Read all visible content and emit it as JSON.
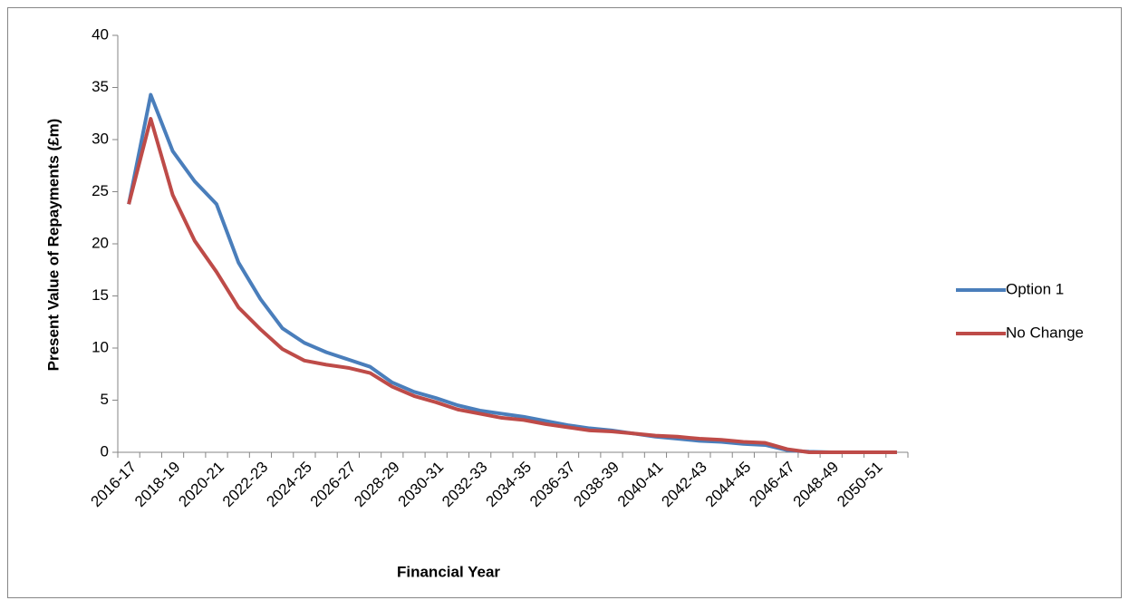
{
  "chart_data": {
    "type": "line",
    "x_label": "Financial Year",
    "y_label": "Present Value of Repayments (£m)",
    "categories": [
      "2016-17",
      null,
      "2018-19",
      null,
      "2020-21",
      null,
      "2022-23",
      null,
      "2024-25",
      null,
      "2026-27",
      null,
      "2028-29",
      null,
      "2030-31",
      null,
      "2032-33",
      null,
      "2034-35",
      null,
      "2036-37",
      null,
      "2038-39",
      null,
      "2040-41",
      null,
      "2042-43",
      null,
      "2044-45",
      null,
      "2046-47",
      null,
      "2048-49",
      null,
      "2050-51",
      null
    ],
    "series": [
      {
        "name": "Option 1",
        "color": "#4a7ebb",
        "values": [
          23.8,
          34.3,
          28.9,
          26.0,
          23.8,
          18.2,
          14.7,
          11.9,
          10.5,
          9.6,
          8.9,
          8.2,
          6.7,
          5.8,
          5.2,
          4.5,
          4.0,
          3.7,
          3.4,
          3.0,
          2.6,
          2.3,
          2.1,
          1.8,
          1.5,
          1.3,
          1.1,
          1.0,
          0.8,
          0.7,
          0.2,
          0.05,
          0,
          0,
          0,
          0
        ]
      },
      {
        "name": "No Change",
        "color": "#be4b48",
        "values": [
          23.8,
          32.0,
          24.7,
          20.3,
          17.3,
          13.9,
          11.8,
          9.9,
          8.8,
          8.4,
          8.1,
          7.6,
          6.3,
          5.4,
          4.8,
          4.1,
          3.7,
          3.3,
          3.1,
          2.7,
          2.4,
          2.1,
          2.0,
          1.8,
          1.6,
          1.5,
          1.3,
          1.2,
          1.0,
          0.9,
          0.3,
          0,
          0,
          0,
          0,
          0
        ]
      }
    ],
    "ylim": [
      0,
      40
    ],
    "yticks": [
      0,
      5,
      10,
      15,
      20,
      25,
      30,
      35,
      40
    ],
    "grid": false,
    "legend": "right"
  }
}
